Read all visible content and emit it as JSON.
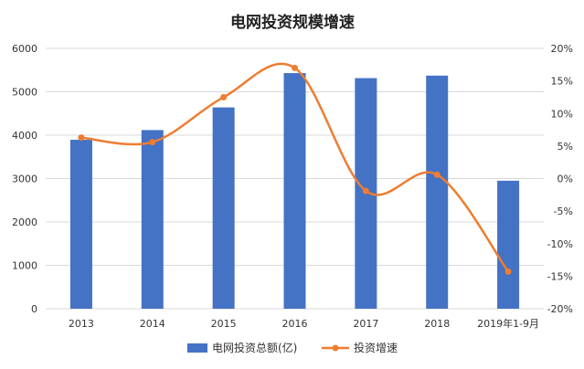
{
  "chart_data": {
    "type": "bar",
    "title": "电网投资规模增速",
    "categories": [
      "2013",
      "2014",
      "2015",
      "2016",
      "2017",
      "2018",
      "2019年1-9月"
    ],
    "series": [
      {
        "name": "电网投资总额(亿)",
        "type": "bar",
        "axis": "left",
        "color": "#4472C4",
        "values": [
          3894,
          4118,
          4640,
          5431,
          5315,
          5373,
          2950
        ]
      },
      {
        "name": "投资增速",
        "type": "line",
        "axis": "right",
        "smooth": true,
        "color": "#ED7D31",
        "values": [
          6.3,
          5.6,
          12.5,
          17.0,
          -1.9,
          0.6,
          -14.3
        ]
      }
    ],
    "y_left": {
      "min": 0,
      "max": 6000,
      "step": 1000,
      "ticks": [
        "0",
        "1000",
        "2000",
        "3000",
        "4000",
        "5000",
        "6000"
      ]
    },
    "y_right": {
      "min": -20,
      "max": 20,
      "step": 5,
      "ticks": [
        "-20%",
        "-15%",
        "-10%",
        "-5%",
        "0%",
        "5%",
        "10%",
        "15%",
        "20%"
      ]
    },
    "grid": true,
    "legend_position": "bottom"
  }
}
